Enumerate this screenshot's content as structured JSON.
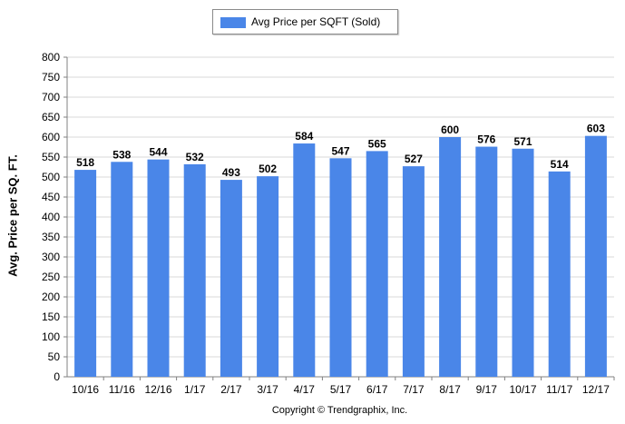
{
  "chart_data": {
    "type": "bar",
    "categories": [
      "10/16",
      "11/16",
      "12/16",
      "1/17",
      "2/17",
      "3/17",
      "4/17",
      "5/17",
      "6/17",
      "7/17",
      "8/17",
      "9/17",
      "10/17",
      "11/17",
      "12/17"
    ],
    "series": [
      {
        "name": "Avg Price per SQFT (Sold)",
        "values": [
          518,
          538,
          544,
          532,
          493,
          502,
          584,
          547,
          565,
          527,
          600,
          576,
          571,
          514,
          603
        ]
      }
    ],
    "ylabel": "Avg. Price per SQ. FT.",
    "ylim": [
      0,
      800
    ],
    "yticks": [
      0,
      50,
      100,
      150,
      200,
      250,
      300,
      350,
      400,
      450,
      500,
      550,
      600,
      650,
      700,
      750,
      800
    ],
    "grid": true,
    "legend_position": "top-center",
    "data_labels": true,
    "bar_color": "#4a86e8"
  },
  "footer": {
    "copyright": "Copyright © Trendgraphix, Inc."
  }
}
